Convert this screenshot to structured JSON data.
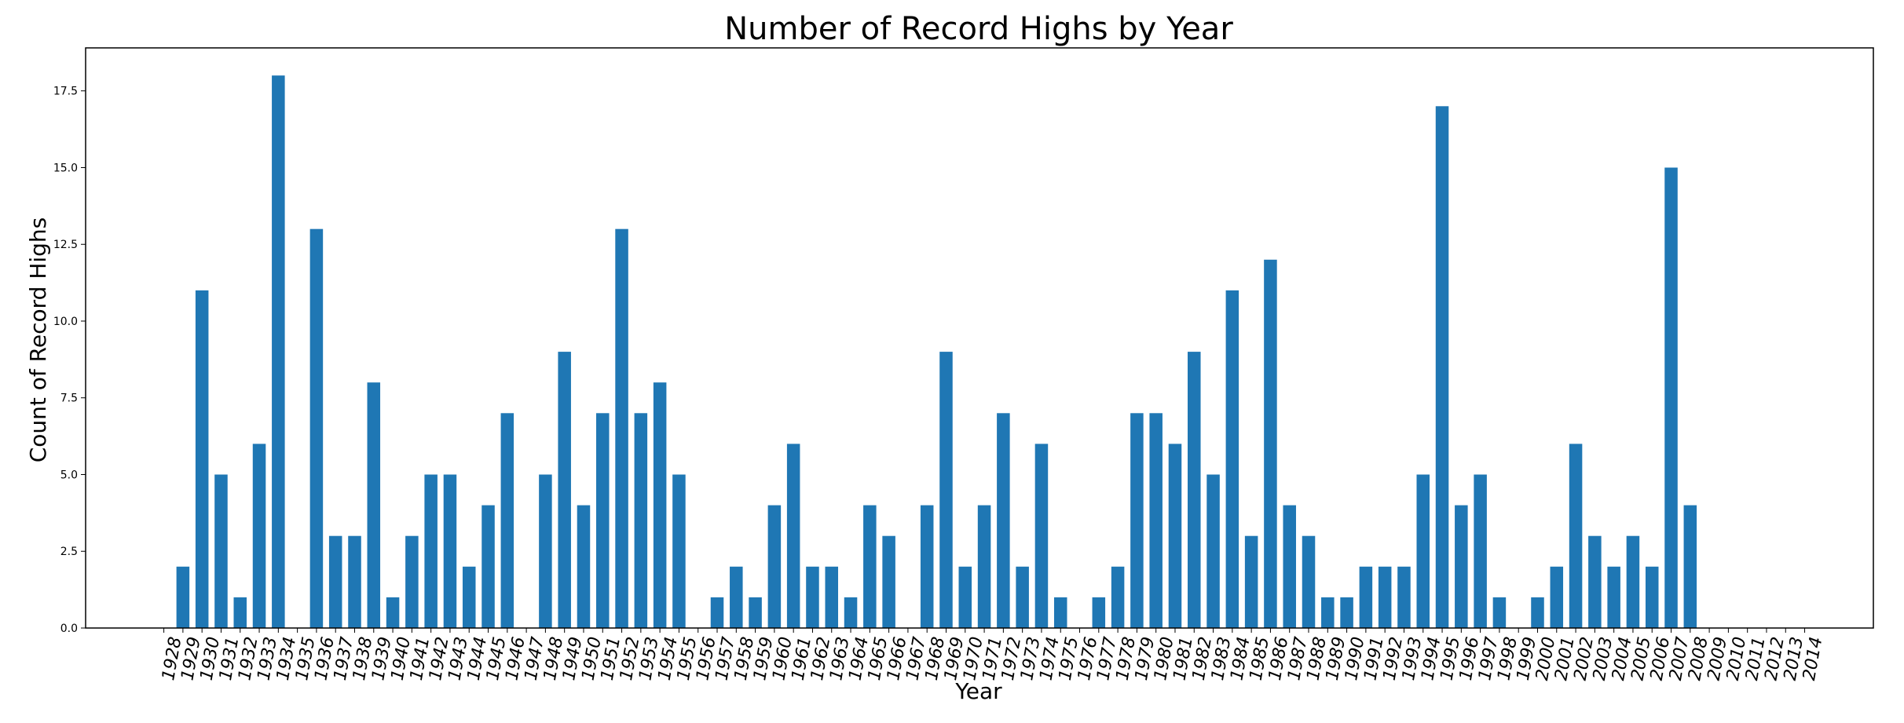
{
  "chart_data": {
    "type": "bar",
    "title": "Number of Record Highs by Year",
    "xlabel": "Year",
    "ylabel": "Count of Record Highs",
    "categories": [
      "1928",
      "1929",
      "1930",
      "1931",
      "1932",
      "1933",
      "1934",
      "1935",
      "1936",
      "1937",
      "1938",
      "1939",
      "1940",
      "1941",
      "1942",
      "1943",
      "1944",
      "1945",
      "1946",
      "1947",
      "1948",
      "1949",
      "1950",
      "1951",
      "1952",
      "1953",
      "1954",
      "1955",
      "1956",
      "1957",
      "1958",
      "1959",
      "1960",
      "1961",
      "1962",
      "1963",
      "1964",
      "1965",
      "1966",
      "1967",
      "1968",
      "1969",
      "1970",
      "1971",
      "1972",
      "1973",
      "1974",
      "1975",
      "1976",
      "1977",
      "1978",
      "1979",
      "1980",
      "1981",
      "1982",
      "1983",
      "1984",
      "1985",
      "1986",
      "1987",
      "1988",
      "1989",
      "1990",
      "1991",
      "1992",
      "1993",
      "1994",
      "1995",
      "1996",
      "1997",
      "1998",
      "1999",
      "2000",
      "2001",
      "2002",
      "2003",
      "2004",
      "2005",
      "2006",
      "2007",
      "2008",
      "2009",
      "2010",
      "2011",
      "2012",
      "2013",
      "2014"
    ],
    "bars": [
      {
        "x": 1929,
        "value": 2
      },
      {
        "x": 1930,
        "value": 11
      },
      {
        "x": 1931,
        "value": 5
      },
      {
        "x": 1932,
        "value": 1
      },
      {
        "x": 1933,
        "value": 6
      },
      {
        "x": 1934,
        "value": 18
      },
      {
        "x": 1936,
        "value": 13
      },
      {
        "x": 1937,
        "value": 3
      },
      {
        "x": 1938,
        "value": 3
      },
      {
        "x": 1939,
        "value": 8
      },
      {
        "x": 1940,
        "value": 1
      },
      {
        "x": 1941,
        "value": 3
      },
      {
        "x": 1942,
        "value": 5
      },
      {
        "x": 1943,
        "value": 5
      },
      {
        "x": 1944,
        "value": 2
      },
      {
        "x": 1945,
        "value": 4
      },
      {
        "x": 1946,
        "value": 7
      },
      {
        "x": 1948,
        "value": 5
      },
      {
        "x": 1949,
        "value": 9
      },
      {
        "x": 1950,
        "value": 4
      },
      {
        "x": 1951,
        "value": 7
      },
      {
        "x": 1952,
        "value": 13
      },
      {
        "x": 1953,
        "value": 7
      },
      {
        "x": 1954,
        "value": 8
      },
      {
        "x": 1955,
        "value": 5
      },
      {
        "x": 1957,
        "value": 1
      },
      {
        "x": 1958,
        "value": 2
      },
      {
        "x": 1959,
        "value": 1
      },
      {
        "x": 1960,
        "value": 4
      },
      {
        "x": 1961,
        "value": 6
      },
      {
        "x": 1962,
        "value": 2
      },
      {
        "x": 1963,
        "value": 2
      },
      {
        "x": 1964,
        "value": 1
      },
      {
        "x": 1965,
        "value": 4
      },
      {
        "x": 1966,
        "value": 3
      },
      {
        "x": 1968,
        "value": 4
      },
      {
        "x": 1969,
        "value": 9
      },
      {
        "x": 1970,
        "value": 2
      },
      {
        "x": 1971,
        "value": 4
      },
      {
        "x": 1972,
        "value": 7
      },
      {
        "x": 1973,
        "value": 2
      },
      {
        "x": 1974,
        "value": 6
      },
      {
        "x": 1975,
        "value": 1
      },
      {
        "x": 1977,
        "value": 1
      },
      {
        "x": 1978,
        "value": 2
      },
      {
        "x": 1979,
        "value": 7
      },
      {
        "x": 1980,
        "value": 7
      },
      {
        "x": 1981,
        "value": 6
      },
      {
        "x": 1982,
        "value": 9
      },
      {
        "x": 1983,
        "value": 5
      },
      {
        "x": 1984,
        "value": 11
      },
      {
        "x": 1985,
        "value": 3
      },
      {
        "x": 1986,
        "value": 12
      },
      {
        "x": 1987,
        "value": 4
      },
      {
        "x": 1988,
        "value": 3
      },
      {
        "x": 1989,
        "value": 1
      },
      {
        "x": 1990,
        "value": 1
      },
      {
        "x": 1991,
        "value": 2
      },
      {
        "x": 1992,
        "value": 2
      },
      {
        "x": 1993,
        "value": 2
      },
      {
        "x": 1994,
        "value": 5
      },
      {
        "x": 1995,
        "value": 17
      },
      {
        "x": 1996,
        "value": 4
      },
      {
        "x": 1997,
        "value": 5
      },
      {
        "x": 1998,
        "value": 1
      },
      {
        "x": 2000,
        "value": 1
      },
      {
        "x": 2001,
        "value": 2
      },
      {
        "x": 2002,
        "value": 6
      },
      {
        "x": 2003,
        "value": 3
      },
      {
        "x": 2004,
        "value": 2
      },
      {
        "x": 2005,
        "value": 3
      },
      {
        "x": 2006,
        "value": 2
      },
      {
        "x": 2007,
        "value": 15
      },
      {
        "x": 2008,
        "value": 4
      }
    ],
    "xlim": [
      1923.9,
      2017.6
    ],
    "ylim": [
      0,
      18.9
    ],
    "yticks": [
      "0.0",
      "2.5",
      "5.0",
      "7.5",
      "10.0",
      "12.5",
      "15.0",
      "17.5"
    ],
    "legend": "none",
    "grid": false,
    "bar_color": "#1f77b4"
  }
}
